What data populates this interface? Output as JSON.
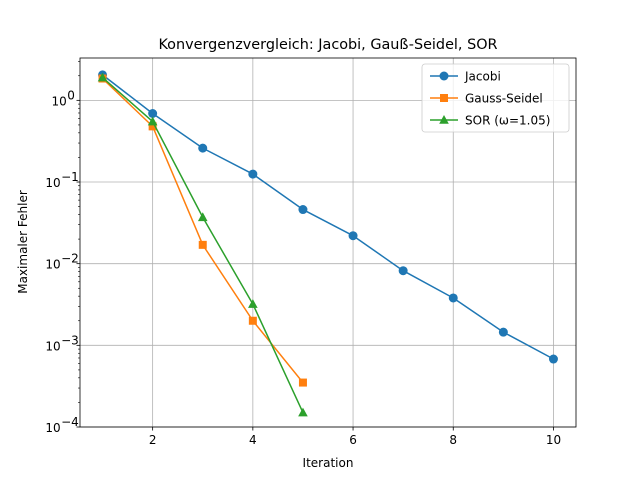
{
  "chart_data": {
    "type": "line",
    "title": "Konvergenzvergleich: Jacobi, Gauß-Seidel, SOR",
    "xlabel": "Iteration",
    "ylabel": "Maximaler Fehler",
    "yscale": "log",
    "xlim": [
      0.55,
      10.45
    ],
    "ylim": [
      0.0001,
      3.3
    ],
    "xticks": [
      2,
      4,
      6,
      8,
      10
    ],
    "yticks": [
      {
        "value": 0.0001,
        "base": "10",
        "exp": "−4"
      },
      {
        "value": 0.001,
        "base": "10",
        "exp": "−3"
      },
      {
        "value": 0.01,
        "base": "10",
        "exp": "−2"
      },
      {
        "value": 0.1,
        "base": "10",
        "exp": "−1"
      },
      {
        "value": 1,
        "base": "10",
        "exp": "0"
      }
    ],
    "grid": true,
    "legend_position": "top-right",
    "series": [
      {
        "name": "Jacobi",
        "color": "#1f77b4",
        "marker": "circle",
        "x": [
          1,
          2,
          3,
          4,
          5,
          6,
          7,
          8,
          9,
          10
        ],
        "y": [
          2.05,
          0.69,
          0.26,
          0.125,
          0.046,
          0.022,
          0.0082,
          0.0038,
          0.00145,
          0.00068
        ]
      },
      {
        "name": "Gauss-Seidel",
        "color": "#ff7f0e",
        "marker": "square",
        "x": [
          1,
          2,
          3,
          4,
          5
        ],
        "y": [
          1.85,
          0.48,
          0.017,
          0.002,
          0.00035
        ]
      },
      {
        "name": "SOR (ω=1.05)",
        "color": "#2ca02c",
        "marker": "triangle",
        "x": [
          1,
          2,
          3,
          4,
          5
        ],
        "y": [
          1.9,
          0.55,
          0.037,
          0.0032,
          0.00015
        ]
      }
    ]
  }
}
